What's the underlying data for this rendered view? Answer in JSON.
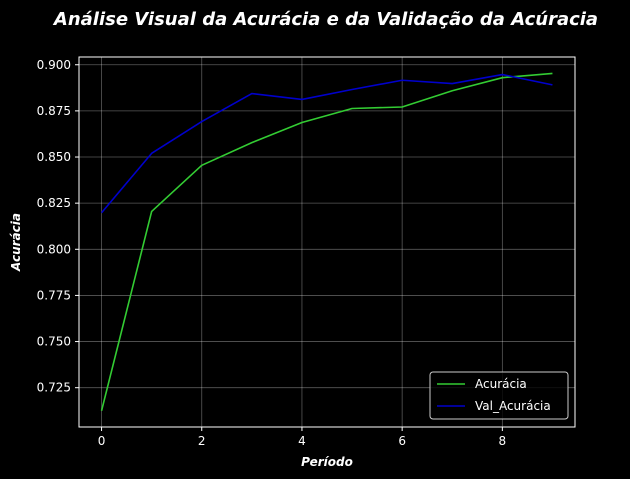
{
  "chart_data": {
    "type": "line",
    "title": "Análise Visual da Acurácia e da Validação da Acúracia",
    "xlabel": "Período",
    "ylabel": "Acurácia",
    "x": [
      0,
      1,
      2,
      3,
      4,
      5,
      6,
      7,
      8,
      9
    ],
    "xlim": [
      -0.45,
      9.45
    ],
    "ylim": [
      0.7037,
      0.9042
    ],
    "xticks": [
      0,
      2,
      4,
      6,
      8
    ],
    "xtick_labels": [
      "0",
      "2",
      "4",
      "6",
      "8"
    ],
    "yticks": [
      0.725,
      0.75,
      0.775,
      0.8,
      0.825,
      0.85,
      0.875,
      0.9
    ],
    "ytick_labels": [
      "0.725",
      "0.750",
      "0.775",
      "0.800",
      "0.825",
      "0.850",
      "0.875",
      "0.900"
    ],
    "grid": true,
    "legend_position": "lower right",
    "series": [
      {
        "name": "Acurácia",
        "color": "#33cc33",
        "values": [
          0.7125,
          0.8205,
          0.8455,
          0.8578,
          0.8687,
          0.8763,
          0.8771,
          0.8859,
          0.893,
          0.8953
        ]
      },
      {
        "name": "Val_Acurácia",
        "color": "#0000cc",
        "values": [
          0.8198,
          0.852,
          0.8692,
          0.8844,
          0.8812,
          0.8866,
          0.8916,
          0.8898,
          0.8947,
          0.8891
        ]
      }
    ]
  }
}
